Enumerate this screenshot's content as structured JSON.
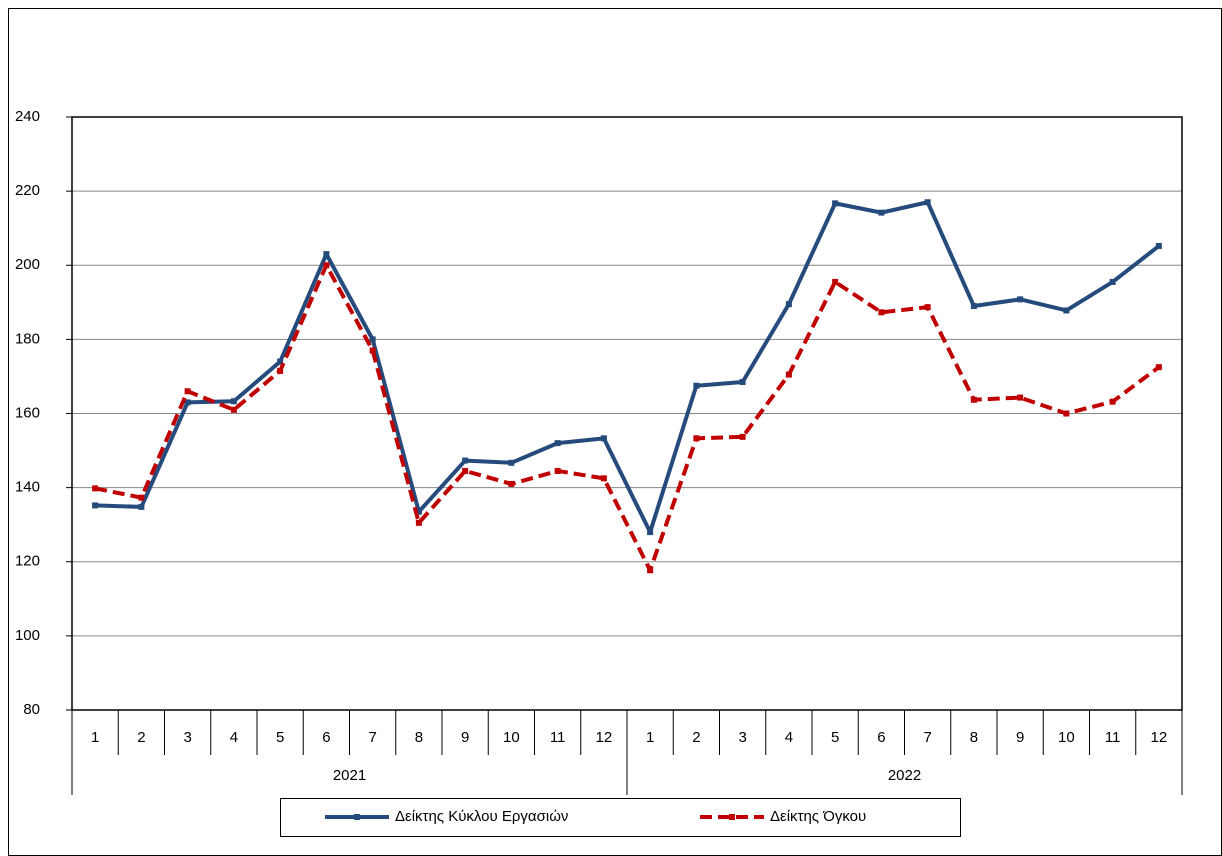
{
  "chart_data": {
    "type": "line",
    "categories": [
      "1",
      "2",
      "3",
      "4",
      "5",
      "6",
      "7",
      "8",
      "9",
      "10",
      "11",
      "12",
      "1",
      "2",
      "3",
      "4",
      "5",
      "6",
      "7",
      "8",
      "9",
      "10",
      "11",
      "12"
    ],
    "category_groups": [
      "2021",
      "2022"
    ],
    "series": [
      {
        "name": "Δείκτης Κύκλου Εργασιών",
        "color": "#254a7c",
        "dash": false,
        "values": [
          135.2,
          134.8,
          163,
          163.3,
          174,
          203,
          180,
          133.5,
          147.3,
          146.7,
          152,
          153.3,
          128,
          167.5,
          168.5,
          189.5,
          216.7,
          214.2,
          217,
          189,
          190.8,
          187.8,
          195.5,
          205.2
        ]
      },
      {
        "name": "Δείκτης Όγκου",
        "color": "#c00000",
        "dash": true,
        "values": [
          139.8,
          137.3,
          166,
          161,
          171.5,
          200,
          177,
          130.5,
          144.5,
          141,
          144.5,
          142.5,
          117.7,
          153.3,
          153.7,
          170.5,
          195.5,
          187.3,
          188.7,
          163.7,
          164.3,
          160,
          163.2,
          172.5
        ]
      }
    ],
    "ylim": [
      80,
      240
    ],
    "yticks": [
      80,
      100,
      120,
      140,
      160,
      180,
      200,
      220,
      240
    ],
    "grid": true,
    "legend": "bottom"
  }
}
